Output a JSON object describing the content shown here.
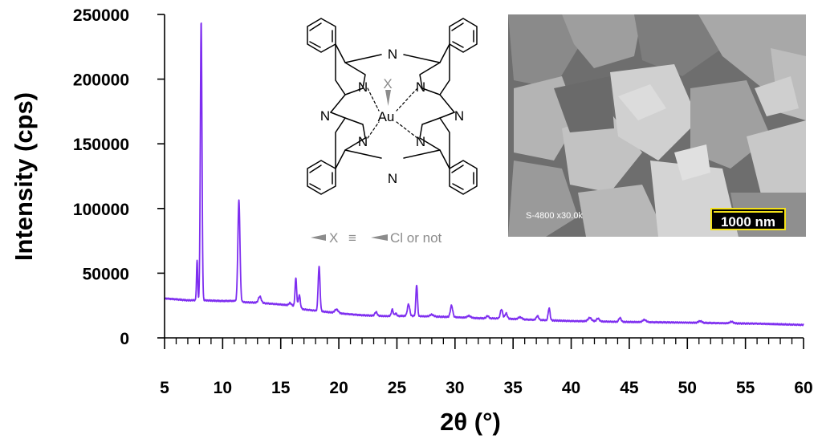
{
  "colors": {
    "series": "#7e2ef0",
    "axis": "#000000",
    "annotation": "#8c8c8c",
    "sem_background": "#6e6e6e",
    "scale_bar_fill": "#f4e21a"
  },
  "chart_data": {
    "type": "line",
    "xlabel": "2θ (°)",
    "ylabel": "Intensity (cps)",
    "xlim": [
      5,
      60
    ],
    "ylim": [
      0,
      250000
    ],
    "xticks": [
      5,
      10,
      15,
      20,
      25,
      30,
      35,
      40,
      45,
      50,
      55,
      60
    ],
    "yticks": [
      0,
      50000,
      100000,
      150000,
      200000,
      250000
    ],
    "grid": false,
    "background": [
      [
        5,
        30500
      ],
      [
        6,
        29800
      ],
      [
        7,
        29000
      ],
      [
        8,
        29200
      ],
      [
        9,
        28800
      ],
      [
        10,
        28500
      ],
      [
        11,
        28600
      ],
      [
        12,
        27500
      ],
      [
        13,
        27200
      ],
      [
        14,
        26500
      ],
      [
        15,
        25800
      ],
      [
        16,
        25000
      ],
      [
        17,
        22000
      ],
      [
        18,
        21000
      ],
      [
        19,
        20000
      ],
      [
        20,
        19000
      ],
      [
        22,
        17500
      ],
      [
        24,
        16800
      ],
      [
        26,
        17000
      ],
      [
        28,
        16500
      ],
      [
        30,
        16000
      ],
      [
        32,
        15200
      ],
      [
        34,
        15000
      ],
      [
        36,
        14200
      ],
      [
        38,
        13600
      ],
      [
        40,
        13000
      ],
      [
        42,
        12800
      ],
      [
        44,
        12400
      ],
      [
        46,
        12200
      ],
      [
        48,
        12000
      ],
      [
        50,
        11800
      ],
      [
        52,
        11500
      ],
      [
        54,
        11200
      ],
      [
        56,
        11000
      ],
      [
        58,
        10500
      ],
      [
        60,
        10000
      ]
    ],
    "peaks": [
      [
        7.8,
        60000,
        0.05
      ],
      [
        8.15,
        245000,
        0.07
      ],
      [
        11.4,
        106000,
        0.09
      ],
      [
        13.2,
        32000,
        0.12
      ],
      [
        15.8,
        27000,
        0.1
      ],
      [
        16.3,
        46000,
        0.07
      ],
      [
        16.6,
        33000,
        0.08
      ],
      [
        18.3,
        55000,
        0.08
      ],
      [
        19.8,
        22000,
        0.15
      ],
      [
        23.2,
        20000,
        0.1
      ],
      [
        24.6,
        22000,
        0.08
      ],
      [
        24.9,
        19000,
        0.08
      ],
      [
        26.0,
        26000,
        0.1
      ],
      [
        26.7,
        41000,
        0.07
      ],
      [
        28.0,
        18000,
        0.15
      ],
      [
        29.7,
        25000,
        0.1
      ],
      [
        31.2,
        17000,
        0.15
      ],
      [
        32.8,
        17000,
        0.1
      ],
      [
        34.0,
        22000,
        0.1
      ],
      [
        34.4,
        19000,
        0.1
      ],
      [
        35.6,
        16000,
        0.15
      ],
      [
        37.1,
        17000,
        0.1
      ],
      [
        38.1,
        23000,
        0.08
      ],
      [
        41.6,
        15500,
        0.15
      ],
      [
        42.3,
        15000,
        0.12
      ],
      [
        44.2,
        15500,
        0.1
      ],
      [
        46.3,
        14000,
        0.15
      ],
      [
        51.1,
        13000,
        0.15
      ],
      [
        53.8,
        12500,
        0.15
      ]
    ]
  },
  "inset": {
    "scheme": {
      "atom_n": "N",
      "atom_au": "Au",
      "atom_x": "X",
      "legend_x": "X",
      "legend_equiv": "≡",
      "legend_text": "Cl or not"
    },
    "sem": {
      "instrument_text": "S-4800 x30.0k",
      "scale_bar_label": "1000 nm"
    }
  }
}
